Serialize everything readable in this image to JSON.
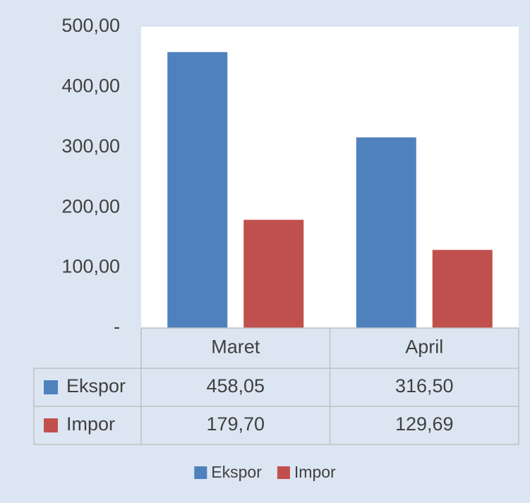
{
  "chart_data": {
    "type": "bar",
    "categories": [
      "Maret",
      "April"
    ],
    "series": [
      {
        "name": "Ekspor",
        "color": "#4f81bd",
        "values": [
          458.05,
          316.5
        ],
        "value_labels": [
          "458,05",
          "316,50"
        ]
      },
      {
        "name": "Impor",
        "color": "#c0504d",
        "values": [
          179.7,
          129.69
        ],
        "value_labels": [
          "179,70",
          "129,69"
        ]
      }
    ],
    "ylim": [
      0,
      500
    ],
    "yticks": [
      {
        "value": 0,
        "label": "-"
      },
      {
        "value": 100,
        "label": "100,00"
      },
      {
        "value": 200,
        "label": "200,00"
      },
      {
        "value": 300,
        "label": "300,00"
      },
      {
        "value": 400,
        "label": "400,00"
      },
      {
        "value": 500,
        "label": "500,00"
      }
    ],
    "grid": false,
    "legend": "bottom",
    "data_table": true
  }
}
